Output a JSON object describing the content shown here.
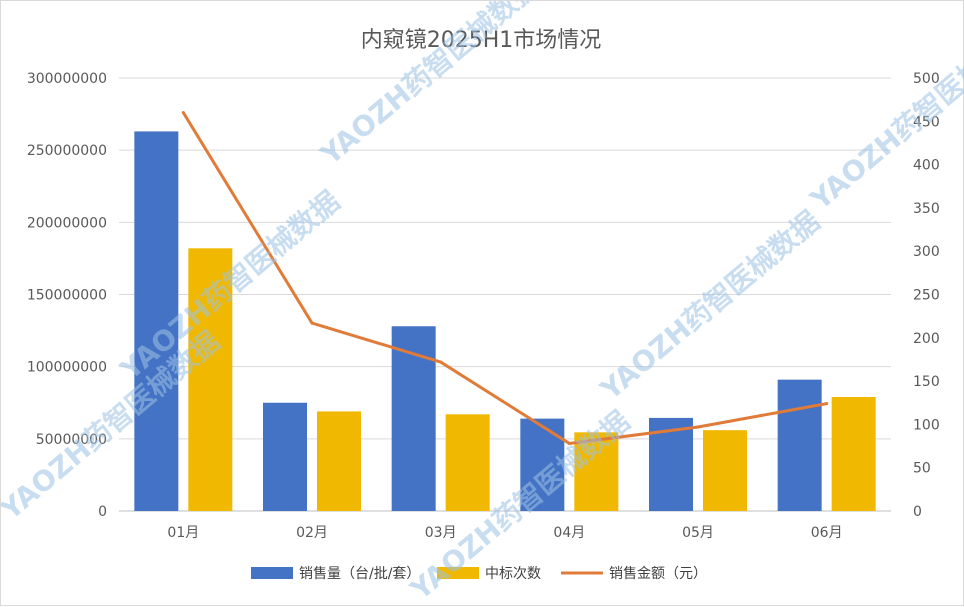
{
  "chart_data": {
    "type": "bar",
    "title": "内窥镜2025H1市场情况",
    "categories": [
      "01月",
      "02月",
      "03月",
      "04月",
      "05月",
      "06月"
    ],
    "series": [
      {
        "name": "销售量（台/批/套）",
        "type": "bar",
        "axis": "left",
        "color": "#4472c4",
        "values": [
          263000000,
          75000000,
          128000000,
          64000000,
          64500000,
          91000000
        ]
      },
      {
        "name": "中标次数",
        "type": "bar",
        "axis": "left",
        "color": "#f0b800",
        "values": [
          182000000,
          69000000,
          67000000,
          54500000,
          56000000,
          79000000
        ]
      },
      {
        "name": "销售金额（元）",
        "type": "line",
        "axis": "right",
        "color": "#e07b39",
        "values": [
          460,
          217,
          172,
          78,
          97,
          124
        ]
      }
    ],
    "y_left": {
      "min": 0,
      "max": 300000000,
      "step": 50000000,
      "ticks": [
        "0",
        "50000000",
        "100000000",
        "150000000",
        "200000000",
        "250000000",
        "300000000"
      ]
    },
    "y_right": {
      "min": 0,
      "max": 500,
      "step": 50,
      "ticks": [
        "0",
        "50",
        "100",
        "150",
        "200",
        "250",
        "300",
        "350",
        "400",
        "450",
        "500"
      ]
    },
    "grid": true,
    "legend_position": "bottom"
  },
  "watermark": {
    "text": "YAOZH药智医械数据",
    "color": "#9dc3e6"
  }
}
